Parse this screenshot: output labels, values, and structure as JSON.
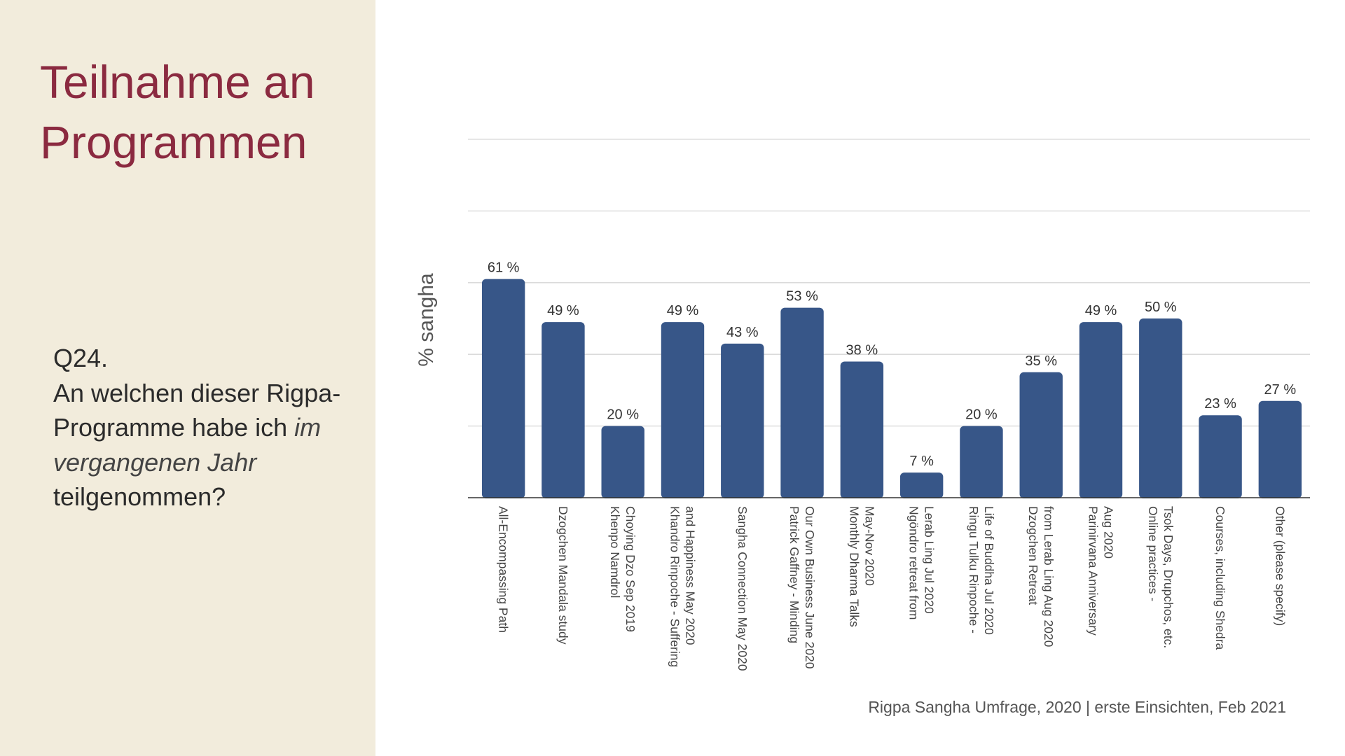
{
  "slide": {
    "title_line1": "Teilnahme an",
    "title_line2": "Programmen",
    "question_number": "Q24.",
    "question_part1": "An welchen dieser Rigpa-Programme habe ich ",
    "question_emphasis": "im vergangenen Jahr",
    "question_part2": " teilgenommen?",
    "source": "Rigpa Sangha Umfrage, 2020  |  erste Einsichten, Feb 2021"
  },
  "colors": {
    "bar": "#375688",
    "title": "#8b2a40",
    "left_panel": "#f2ecdc"
  },
  "chart_data": {
    "type": "bar",
    "ylabel": "% sangha",
    "xlabel": "",
    "ylim": [
      0,
      100
    ],
    "grid": true,
    "value_suffix": " %",
    "categories": [
      [
        "All-Encompassing Path"
      ],
      [
        "Dzogchen Mandala study"
      ],
      [
        "Khenpo Namdrol",
        "Choying Dzo Sep 2019"
      ],
      [
        "Khandro Rinpoche - Suffering",
        "and Happiness May 2020"
      ],
      [
        "Sangha Connection May 2020"
      ],
      [
        "Patrick Gaffney - Minding",
        "Our Own Business June 2020"
      ],
      [
        "Monthly Dharma Talks",
        "May-Nov 2020"
      ],
      [
        "Ngöndro retreat from",
        "Lerab Ling Jul 2020"
      ],
      [
        "Ringu Tulku Rinpoche -",
        "Life of Buddha Jul 2020"
      ],
      [
        "Dzogchen Retreat",
        "from Lerab Ling Aug 2020"
      ],
      [
        "Parinirvana Anniversary",
        "Aug 2020"
      ],
      [
        "Online practices -",
        "Tsok Days, Drupchos, etc."
      ],
      [
        "Courses, including Shedra"
      ],
      [
        "Other (please specify)"
      ]
    ],
    "values": [
      61,
      49,
      20,
      49,
      43,
      53,
      38,
      7,
      20,
      35,
      49,
      50,
      23,
      27
    ]
  }
}
